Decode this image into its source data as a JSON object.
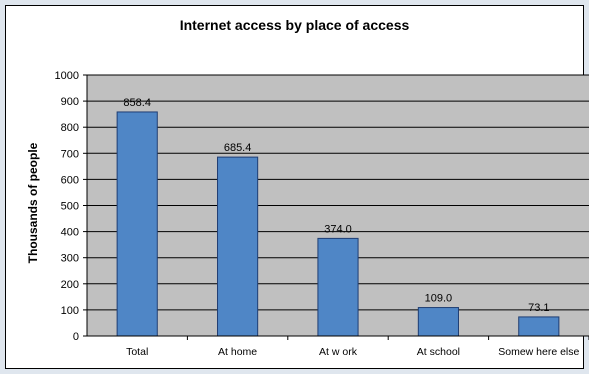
{
  "chart_data": {
    "type": "bar",
    "title": "Internet access by place of access",
    "ylabel": "Thousands of people",
    "xlabel": "",
    "categories": [
      "Total",
      "At home",
      "At w ork",
      "At school",
      "Somew here else"
    ],
    "values": [
      858.4,
      685.4,
      374.0,
      109.0,
      73.1
    ],
    "data_labels": [
      "858.4",
      "685.4",
      "374.0",
      "109.0",
      "73.1"
    ],
    "ylim": [
      0,
      1000
    ],
    "yticks": [
      0,
      100,
      200,
      300,
      400,
      500,
      600,
      700,
      800,
      900,
      1000
    ],
    "grid": true,
    "legend": "none",
    "colors": {
      "bar": "#4f86c6",
      "bar_border": "#1f3d73",
      "plot_bg": "#c0c0c0",
      "page_bg": "#dfe6ee"
    }
  }
}
